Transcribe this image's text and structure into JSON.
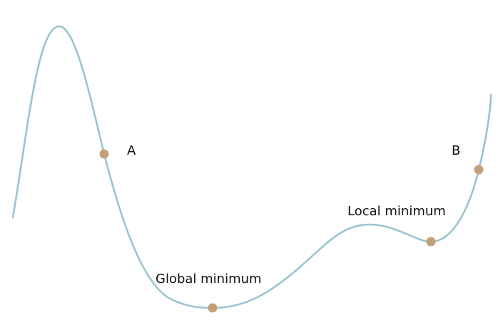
{
  "diagram": {
    "curve_color": "#9bc4d0",
    "point_color": "#c4a07a",
    "points": [
      {
        "id": "A",
        "label": "A"
      },
      {
        "id": "global",
        "label": "Global minimum"
      },
      {
        "id": "local",
        "label": "Local minimum"
      },
      {
        "id": "B",
        "label": "B"
      }
    ]
  }
}
